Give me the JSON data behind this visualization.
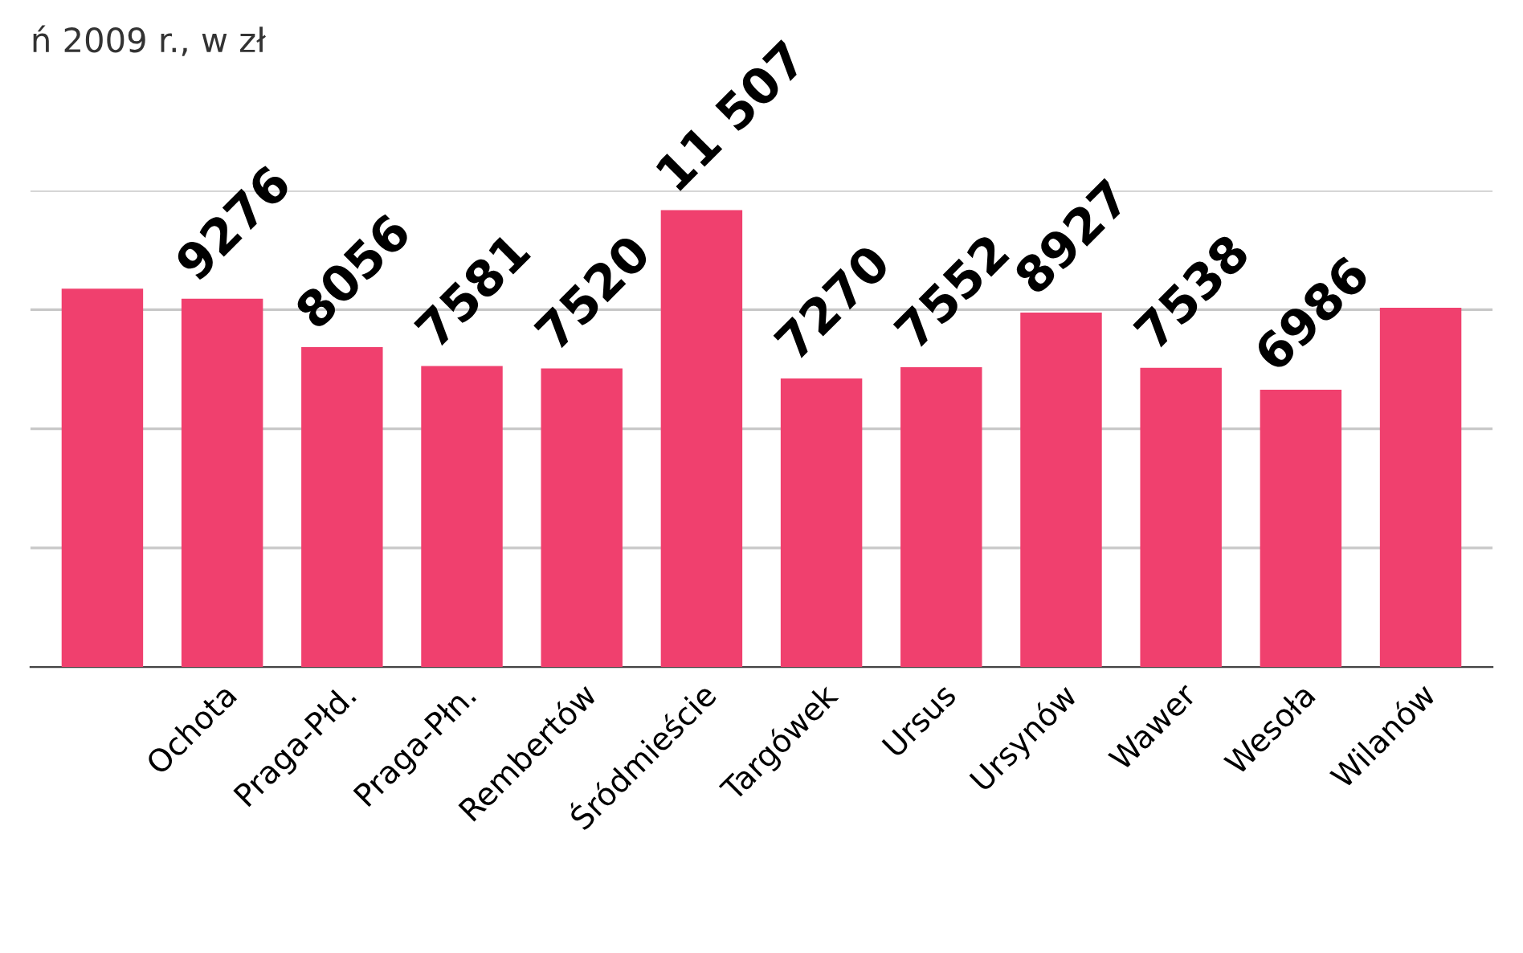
{
  "chart_data": {
    "type": "bar",
    "title": "ń 2009 r., w zł",
    "categories": [
      null,
      "Ochota",
      "Praga-Płd.",
      "Praga-Płn.",
      "Rembertów",
      "Śródmieście",
      "Targówek",
      "Ursus",
      "Ursynów",
      "Wawer",
      "Wesoła",
      "Wilanów"
    ],
    "values": [
      9530,
      9276,
      8056,
      7581,
      7520,
      11507,
      7270,
      7552,
      8927,
      7538,
      6986,
      9050
    ],
    "value_labels": [
      null,
      "9276",
      "8056",
      "7581",
      "7520",
      "11 507",
      "7270",
      "7552",
      "8927",
      "7538",
      "6986",
      null
    ],
    "color": "#f0406e",
    "ylim": [
      0,
      12000
    ],
    "yticks": [
      {
        "value": 3000,
        "label": null
      },
      {
        "value": 6000,
        "label": null
      },
      {
        "value": 9000,
        "label": null
      },
      {
        "value": 12000,
        "label": null
      }
    ],
    "grid": "y"
  }
}
